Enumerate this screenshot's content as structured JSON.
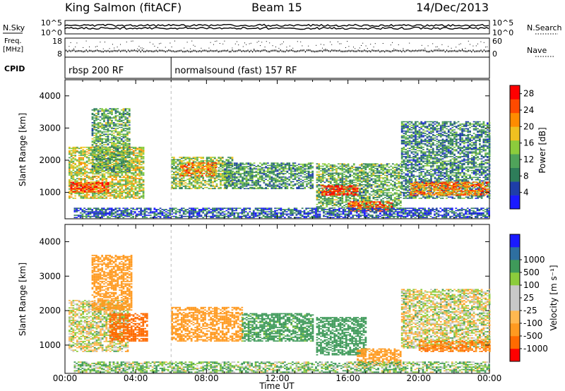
{
  "header": {
    "station": "King Salmon (fitACF)",
    "beam": "Beam 15",
    "date": "14/Dec/2013"
  },
  "side_labels": {
    "nsky": "N.Sky",
    "nsearch": "N.Search",
    "freq_top": "Freq.",
    "freq_unit": "[MHz]",
    "nave": "Nave",
    "cpid": "CPID"
  },
  "colors": {
    "power_scale": [
      "#1a1aff",
      "#1e3ea8",
      "#2e7d5a",
      "#4fa35a",
      "#8ccc3c",
      "#f0c020",
      "#ff8c00",
      "#ff4a00",
      "#ff0000"
    ],
    "velocity_scale": [
      "#ff0000",
      "#ff6a00",
      "#ff9a20",
      "#ffb850",
      "#c8c8c8",
      "#c8c8c8",
      "#8ccc3c",
      "#3f9a5a",
      "#2e6fa0",
      "#1a1aff"
    ]
  },
  "chart_data": [
    {
      "type": "line",
      "panel": "noise",
      "left_ticks": [
        "10^5",
        "10^0"
      ],
      "right_ticks": [
        "10^5",
        "10^0"
      ]
    },
    {
      "type": "scatter",
      "panel": "frequency-nave",
      "left_ticks": [
        "18",
        "8"
      ],
      "right_ticks": [
        "60",
        "0"
      ]
    },
    {
      "type": "table",
      "panel": "cpid",
      "segments": [
        {
          "label": "rbsp 200 RF",
          "start_hour": 0,
          "end_hour": 6
        },
        {
          "label": "normalsound (fast) 157 RF",
          "start_hour": 6,
          "end_hour": 24
        }
      ]
    },
    {
      "type": "heatmap",
      "panel": "power",
      "ylabel": "Slant Range [km]",
      "yticks": [
        "1000",
        "2000",
        "3000",
        "4000"
      ],
      "ylim": [
        180,
        4500
      ],
      "colorbar_label": "Power [dB]",
      "colorbar_ticks": [
        "4",
        "8",
        "12",
        "16",
        "20",
        "24",
        "28"
      ],
      "colorbar_range": [
        0,
        30
      ],
      "regions": [
        {
          "t0": 0.2,
          "t1": 4.4,
          "r0": 800,
          "r1": 2400,
          "value": 16
        },
        {
          "t0": 1.5,
          "t1": 3.6,
          "r0": 1600,
          "r1": 3600,
          "value": 12
        },
        {
          "t0": 0.3,
          "t1": 2.5,
          "r0": 1000,
          "r1": 1300,
          "value": 26
        },
        {
          "t0": 6.0,
          "t1": 9.5,
          "r0": 1100,
          "r1": 2100,
          "value": 14
        },
        {
          "t0": 6.5,
          "t1": 8.5,
          "r0": 1500,
          "r1": 1900,
          "value": 22
        },
        {
          "t0": 9.0,
          "t1": 14.0,
          "r0": 1100,
          "r1": 1900,
          "value": 10
        },
        {
          "t0": 14.2,
          "t1": 19.0,
          "r0": 500,
          "r1": 1900,
          "value": 12
        },
        {
          "t0": 14.5,
          "t1": 16.5,
          "r0": 900,
          "r1": 1200,
          "value": 27
        },
        {
          "t0": 16.0,
          "t1": 18.5,
          "r0": 400,
          "r1": 700,
          "value": 24
        },
        {
          "t0": 19.0,
          "t1": 24.0,
          "r0": 800,
          "r1": 3200,
          "value": 9
        },
        {
          "t0": 19.5,
          "t1": 24.0,
          "r0": 900,
          "r1": 1300,
          "value": 22
        },
        {
          "t0": 0.5,
          "t1": 24.0,
          "r0": 200,
          "r1": 500,
          "value": 6
        }
      ]
    },
    {
      "type": "heatmap",
      "panel": "velocity",
      "ylabel": "Slant Range [km]",
      "xlabel": "Time UT",
      "yticks": [
        "1000",
        "2000",
        "3000",
        "4000"
      ],
      "ylim": [
        180,
        4500
      ],
      "xticks": [
        "00:00",
        "04:00",
        "08:00",
        "12:00",
        "16:00",
        "20:00",
        "00:00"
      ],
      "xlim": [
        0,
        24
      ],
      "colorbar_label": "Velocity [m s⁻¹]",
      "colorbar_ticks": [
        "-1000",
        "-500",
        "-100",
        "-25",
        "25",
        "100",
        "500",
        "1000"
      ],
      "regions": [
        {
          "t0": 0.2,
          "t1": 3.6,
          "r0": 800,
          "r1": 2300,
          "value": 0
        },
        {
          "t0": 1.5,
          "t1": 3.8,
          "r0": 2000,
          "r1": 3600,
          "value": -300
        },
        {
          "t0": 2.5,
          "t1": 4.6,
          "r0": 1100,
          "r1": 1900,
          "value": -800
        },
        {
          "t0": 6.0,
          "t1": 10.0,
          "r0": 1100,
          "r1": 2100,
          "value": -300
        },
        {
          "t0": 10.0,
          "t1": 14.0,
          "r0": 1100,
          "r1": 1900,
          "value": 200
        },
        {
          "t0": 14.2,
          "t1": 17.0,
          "r0": 700,
          "r1": 1800,
          "value": 300
        },
        {
          "t0": 16.5,
          "t1": 19.0,
          "r0": 400,
          "r1": 900,
          "value": -200
        },
        {
          "t0": 19.0,
          "t1": 24.0,
          "r0": 900,
          "r1": 2600,
          "value": 0
        },
        {
          "t0": 20.0,
          "t1": 24.0,
          "r0": 800,
          "r1": 1100,
          "value": -500
        },
        {
          "t0": 0.5,
          "t1": 24.0,
          "r0": 200,
          "r1": 500,
          "value": 80
        }
      ]
    }
  ]
}
